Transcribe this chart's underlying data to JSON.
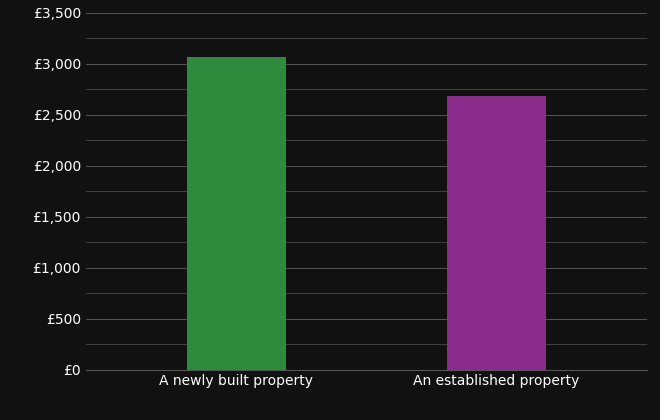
{
  "categories": [
    "A newly built property",
    "An established property"
  ],
  "values": [
    3060,
    2680
  ],
  "bar_colors": [
    "#2e8b3e",
    "#8b2b8b"
  ],
  "background_color": "#111111",
  "text_color": "#ffffff",
  "grid_color": "#555555",
  "ylim": [
    0,
    3500
  ],
  "yticks": [
    0,
    500,
    1000,
    1500,
    2000,
    2500,
    3000,
    3500
  ],
  "ytick_labels": [
    "£0",
    "£500",
    "£1,000",
    "£1,500",
    "£2,000",
    "£2,500",
    "£3,000",
    "£3,500"
  ],
  "minor_yticks": [
    250,
    750,
    1250,
    1750,
    2250,
    2750,
    3250
  ],
  "bar_width": 0.38,
  "x_positions": [
    1,
    2
  ],
  "xlim": [
    0.42,
    2.58
  ]
}
